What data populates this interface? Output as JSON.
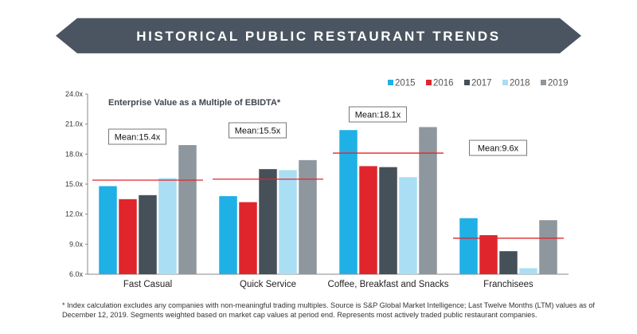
{
  "banner": {
    "title": "HISTORICAL PUBLIC RESTAURANT TRENDS"
  },
  "footnote": "* Index calculation excludes any companies with non-meaningful trading multiples. Source is S&P Global Market Intelligence; Last Twelve Months (LTM) values as of December 12, 2019. Segments weighted based on market cap values at period end. Represents most actively traded public restaurant companies.",
  "colors": {
    "banner_bg": "#4a5561",
    "mean_line": "#e0262c",
    "axis": "#888888"
  },
  "chart_data": {
    "type": "bar",
    "title": "Enterprise Value as a Multiple of EBIDTA*",
    "xlabel": "",
    "ylabel": "",
    "ylim": [
      6.0,
      24.0
    ],
    "yticks": [
      "6.0x",
      "9.0x",
      "12.0x",
      "15.0x",
      "18.0x",
      "21.0x",
      "24.0x"
    ],
    "categories": [
      "Fast Casual",
      "Quick Service",
      "Coffee, Breakfast and Snacks",
      "Franchisees"
    ],
    "series": [
      {
        "name": "2015",
        "color": "#1fb0e6",
        "values": [
          14.8,
          13.8,
          20.4,
          11.6
        ]
      },
      {
        "name": "2016",
        "color": "#e0262c",
        "values": [
          13.5,
          13.2,
          16.8,
          9.9
        ]
      },
      {
        "name": "2017",
        "color": "#465059",
        "values": [
          13.9,
          16.5,
          16.7,
          8.3
        ]
      },
      {
        "name": "2018",
        "color": "#a9def4",
        "values": [
          15.6,
          16.4,
          15.7,
          6.6
        ]
      },
      {
        "name": "2019",
        "color": "#8e979d",
        "values": [
          18.9,
          17.4,
          20.7,
          11.4
        ]
      }
    ],
    "means": [
      {
        "label": "Mean:15.4x",
        "value": 15.4
      },
      {
        "label": "Mean:15.5x",
        "value": 15.5
      },
      {
        "label": "Mean:18.1x",
        "value": 18.1
      },
      {
        "label": "Mean:9.6x",
        "value": 9.6
      }
    ],
    "legend_position": "top-right"
  }
}
